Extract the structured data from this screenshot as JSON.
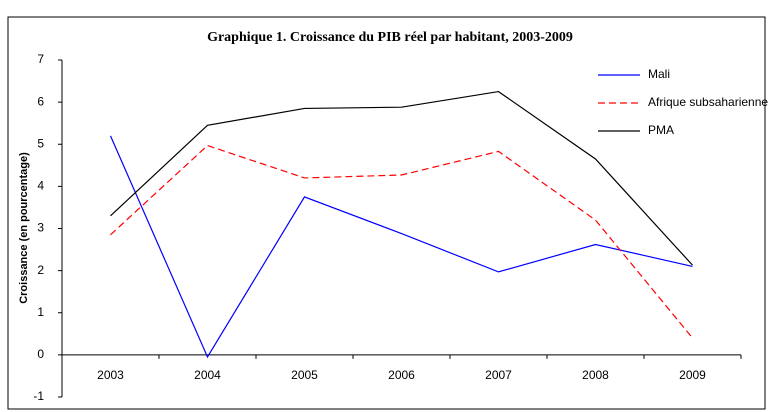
{
  "chart_data": {
    "type": "line",
    "title": "Graphique 1. Croissance du PIB réel par habitant, 2003-2009",
    "y_label": "Croissance (en pourcentage)",
    "categories": [
      "2003",
      "2004",
      "2005",
      "2006",
      "2007",
      "2008",
      "2009"
    ],
    "series": [
      {
        "name": "Mali",
        "color": "#0000ff",
        "dash": false,
        "values": [
          5.2,
          -0.05,
          3.75,
          2.88,
          1.97,
          2.62,
          2.1
        ]
      },
      {
        "name": "Afrique subsaharienne",
        "color": "#ff0000",
        "dash": true,
        "values": [
          2.85,
          4.97,
          4.2,
          4.27,
          4.83,
          3.2,
          0.4
        ]
      },
      {
        "name": "PMA",
        "color": "#000000",
        "dash": false,
        "values": [
          3.3,
          5.45,
          5.85,
          5.88,
          6.25,
          4.65,
          2.13
        ]
      }
    ],
    "ylim": [
      -1,
      7
    ],
    "yticks": [
      -1,
      0,
      1,
      2,
      3,
      4,
      5,
      6,
      7
    ],
    "grid": false,
    "legend": "upper-right"
  }
}
